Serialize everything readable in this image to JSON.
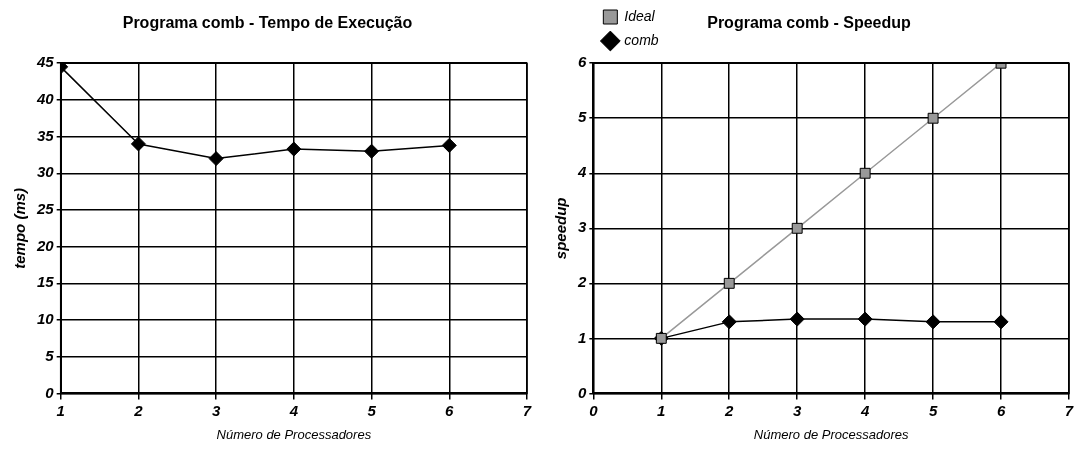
{
  "chart_data": [
    {
      "type": "line",
      "title": "Programa comb - Tempo de Execução",
      "xlabel": "Número de Processadores",
      "ylabel": "tempo (ms)",
      "x": [
        1,
        2,
        3,
        4,
        5,
        6
      ],
      "xlim": [
        1,
        7
      ],
      "xticks": [
        1,
        2,
        3,
        4,
        5,
        6,
        7
      ],
      "ylim": [
        0,
        45
      ],
      "yticks": [
        0,
        5,
        10,
        15,
        20,
        25,
        30,
        35,
        40,
        45
      ],
      "grid": true,
      "legend": false,
      "marker": "diamond",
      "series": [
        {
          "color": "#000000",
          "values": [
            44.5,
            34,
            32,
            33.3,
            33,
            33.8
          ]
        }
      ]
    },
    {
      "type": "line",
      "title": "Programa comb - Speedup",
      "xlabel": "Número de Processadores",
      "ylabel": "speedup",
      "x": [
        1,
        2,
        3,
        4,
        5,
        6
      ],
      "xlim": [
        0,
        7
      ],
      "xticks": [
        0,
        1,
        2,
        3,
        4,
        5,
        6,
        7
      ],
      "ylim": [
        0,
        6
      ],
      "yticks": [
        0,
        1,
        2,
        3,
        4,
        5,
        6
      ],
      "grid": true,
      "legend": "top left",
      "series": [
        {
          "name": "comb",
          "color": "#000000",
          "marker": "diamond",
          "values": [
            1,
            1.3,
            1.35,
            1.35,
            1.3,
            1.3
          ]
        },
        {
          "name": "Ideal",
          "color": "#999999",
          "marker": "square",
          "values": [
            1,
            2,
            3,
            4,
            5,
            6
          ]
        }
      ]
    }
  ]
}
